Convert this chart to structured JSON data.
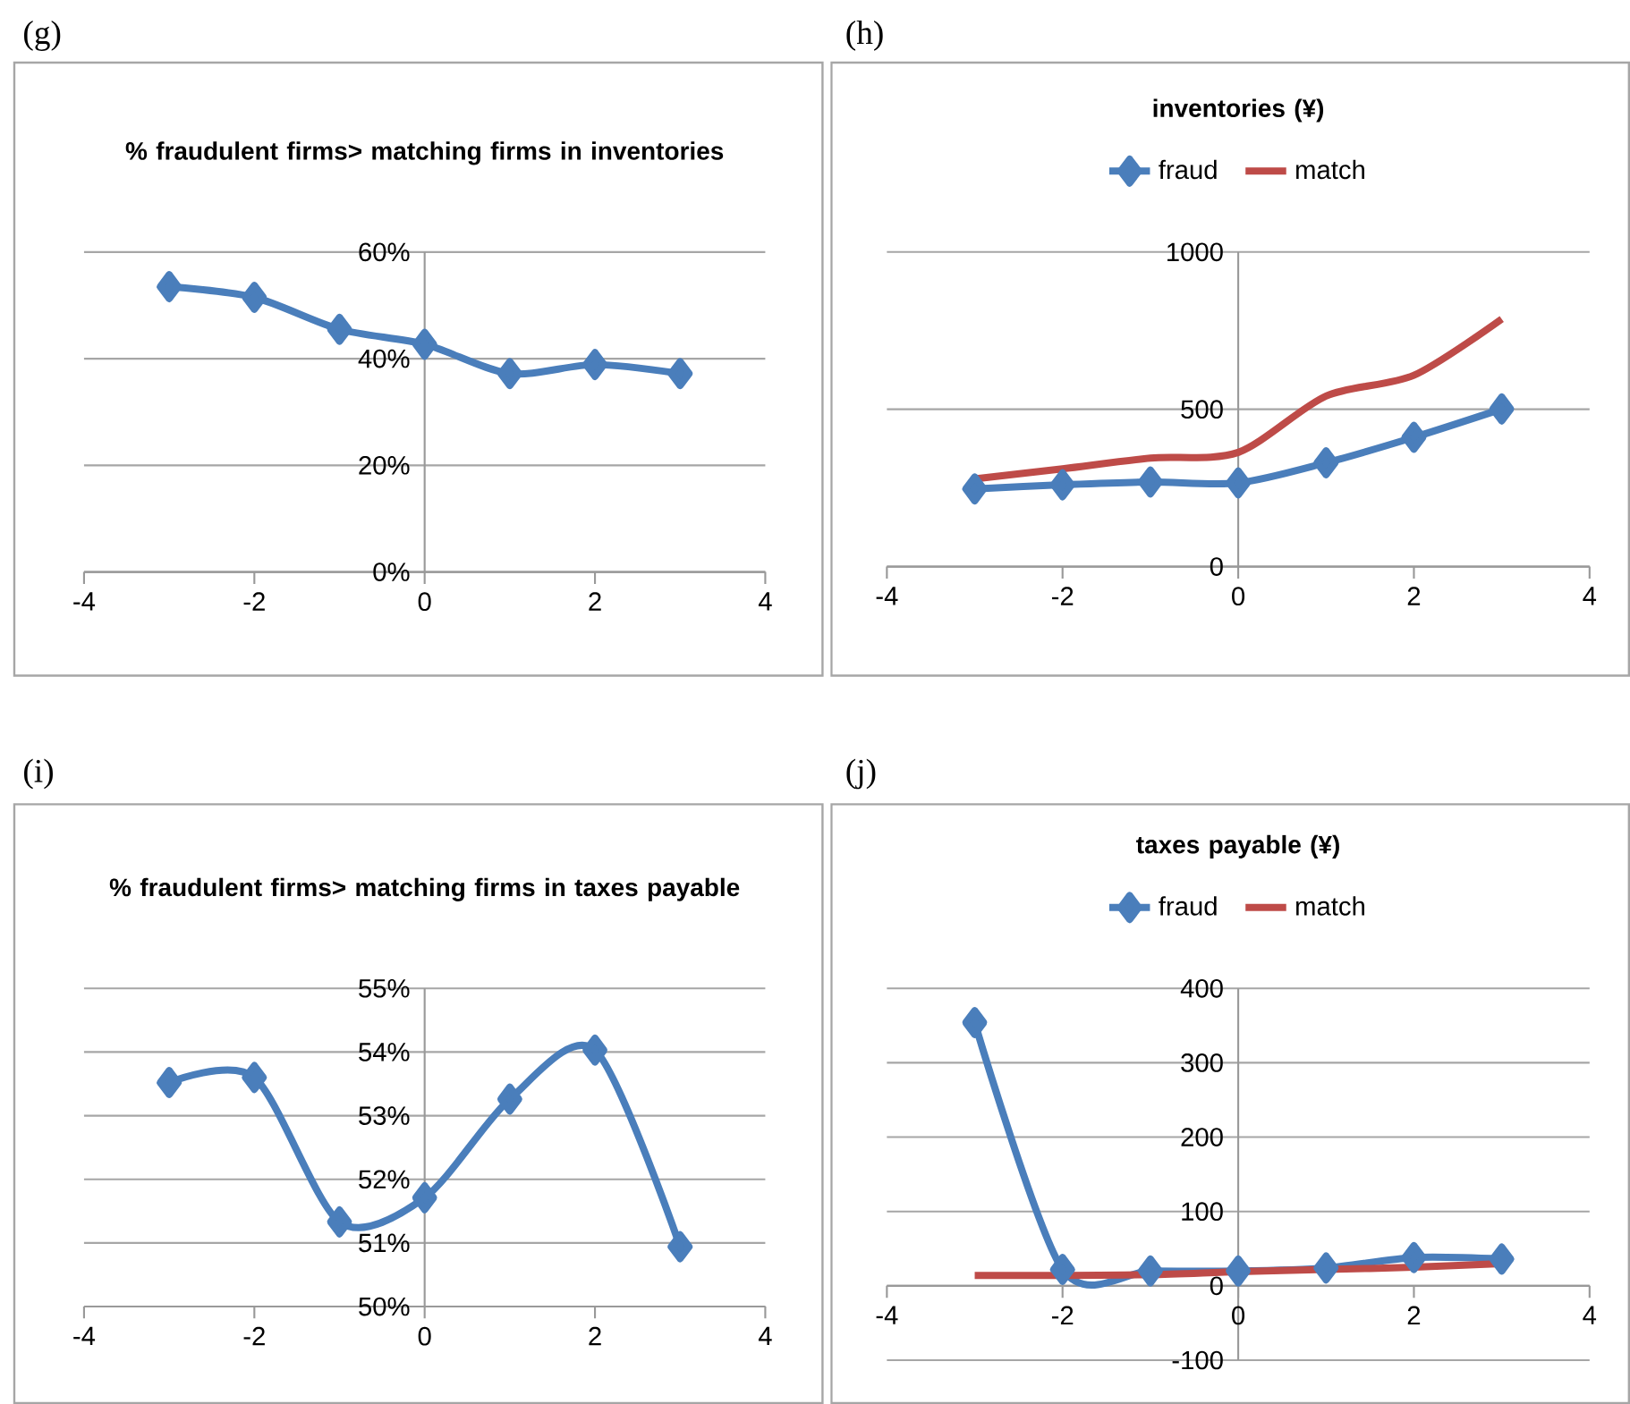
{
  "chart_data": [
    {
      "type": "line",
      "title": "% fraudulent firms> matching firms in inventories",
      "annotations": [
        "(g)"
      ],
      "x": [
        -3,
        -2,
        -1,
        0,
        1,
        2,
        3
      ],
      "series": [
        {
          "color": "#4a7ebb",
          "marker": "diamond",
          "values": [
            53.5,
            51.5,
            45.5,
            42.7,
            37.2,
            38.9,
            37.2
          ]
        }
      ],
      "xlim": [
        -4,
        4
      ],
      "xticks": [
        -4,
        -2,
        0,
        2,
        4
      ],
      "ylim": [
        0,
        60
      ],
      "yticks": [
        {
          "value": 0,
          "label": "0%"
        },
        {
          "value": 20,
          "label": "20%"
        },
        {
          "value": 40,
          "label": "40%"
        },
        {
          "value": 60,
          "label": "60%"
        }
      ],
      "grid": "y"
    },
    {
      "type": "line",
      "title": "inventories (¥)",
      "annotations": [
        "(h)"
      ],
      "x": [
        -3,
        -2,
        -1,
        0,
        1,
        2,
        3
      ],
      "series": [
        {
          "name": "fraud",
          "color": "#4a7ebb",
          "marker": "diamond",
          "values": [
            247,
            260,
            269,
            266,
            330,
            411,
            501
          ]
        },
        {
          "name": "match",
          "color": "#be4b48",
          "marker": "none",
          "values": [
            279,
            311,
            345,
            363,
            542,
            608,
            787
          ]
        }
      ],
      "xlim": [
        -4,
        4
      ],
      "xticks": [
        -4,
        -2,
        0,
        2,
        4
      ],
      "ylim": [
        0,
        1000
      ],
      "yticks": [
        0,
        500,
        1000
      ],
      "grid": "y",
      "legend": "top"
    },
    {
      "type": "line",
      "title": "% fraudulent firms> matching firms in taxes payable",
      "annotations": [
        "(i)"
      ],
      "x": [
        -3,
        -2,
        -1,
        0,
        1,
        2,
        3
      ],
      "series": [
        {
          "color": "#4a7ebb",
          "marker": "diamond",
          "values": [
            53.52,
            53.6,
            51.33,
            51.71,
            53.26,
            54.03,
            50.94
          ]
        }
      ],
      "xlim": [
        -4,
        4
      ],
      "xticks": [
        -4,
        -2,
        0,
        2,
        4
      ],
      "ylim": [
        50,
        55
      ],
      "yticks": [
        {
          "value": 50,
          "label": "50%"
        },
        {
          "value": 51,
          "label": "51%"
        },
        {
          "value": 52,
          "label": "52%"
        },
        {
          "value": 53,
          "label": "53%"
        },
        {
          "value": 54,
          "label": "54%"
        },
        {
          "value": 55,
          "label": "55%"
        }
      ],
      "grid": "y"
    },
    {
      "type": "line",
      "title": "taxes payable (¥)",
      "annotations": [
        "(j)"
      ],
      "x": [
        -3,
        -2,
        -1,
        0,
        1,
        2,
        3
      ],
      "series": [
        {
          "name": "fraud",
          "color": "#4a7ebb",
          "marker": "diamond",
          "values": [
            354,
            22,
            20,
            20,
            24,
            38,
            36
          ]
        },
        {
          "name": "match",
          "color": "#be4b48",
          "marker": "none",
          "values": [
            14,
            14,
            15,
            19,
            22,
            25,
            30
          ]
        }
      ],
      "xlim": [
        -4,
        4
      ],
      "xticks": [
        -4,
        -2,
        0,
        2,
        4
      ],
      "ylim": [
        -100,
        400
      ],
      "yticks": [
        -100,
        0,
        100,
        200,
        300,
        400
      ],
      "grid": "y",
      "legend": "top"
    }
  ]
}
